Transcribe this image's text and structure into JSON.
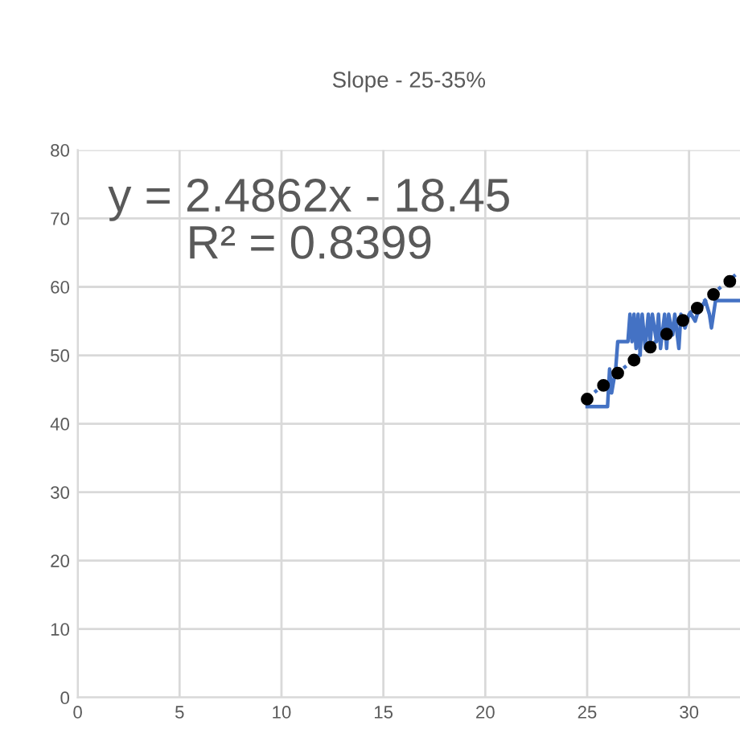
{
  "chart_data": {
    "type": "line",
    "title": "Slope - 25-35%",
    "annotations": [
      "y = 2.4862x - 18.45\nR² = 0.8399"
    ],
    "xlim": [
      0,
      32.5
    ],
    "xticks": [
      0,
      5,
      10,
      15,
      20,
      25,
      30
    ],
    "ylim": [
      0,
      80
    ],
    "yticks": [
      0,
      10,
      20,
      30,
      40,
      50,
      60,
      70,
      80
    ],
    "grid": true,
    "legend": false,
    "series": [
      {
        "color": "#4472c4",
        "x": [
          25.0,
          26.0,
          26.1,
          26.2,
          26.4,
          26.5,
          27.0,
          27.1,
          27.2,
          27.3,
          27.4,
          27.5,
          27.6,
          27.7,
          27.85,
          28.0,
          28.1,
          28.2,
          28.4,
          28.5,
          28.6,
          28.8,
          28.9,
          29.0,
          29.2,
          29.3,
          29.5,
          29.6,
          29.8,
          30.0,
          30.1,
          30.3,
          30.4,
          30.6,
          30.8,
          31.0,
          31.1,
          31.3,
          31.6,
          32.5
        ],
        "values": [
          42.5,
          42.5,
          48,
          44.5,
          48,
          52,
          52,
          56,
          52,
          56,
          51,
          56,
          50,
          56,
          51,
          56,
          52,
          56,
          52,
          56,
          51,
          56,
          51,
          56,
          53,
          56,
          51,
          56,
          54,
          56,
          56,
          55,
          56,
          57,
          58,
          56,
          54,
          58,
          58,
          58
        ]
      },
      {
        "type": "scatter",
        "color": "#000000",
        "marker": "circle",
        "x": [
          25.0,
          25.8,
          26.5,
          27.3,
          28.1,
          28.9,
          29.7,
          30.4,
          31.2,
          32.0
        ],
        "values": [
          43.6,
          45.6,
          47.4,
          49.3,
          51.2,
          53.1,
          55.1,
          56.9,
          58.9,
          60.8
        ]
      },
      {
        "type": "line",
        "color": "#4472c4",
        "line_style": "dotted",
        "x": [
          25.0,
          32.5
        ],
        "values": [
          43.7,
          62.3
        ]
      }
    ]
  }
}
